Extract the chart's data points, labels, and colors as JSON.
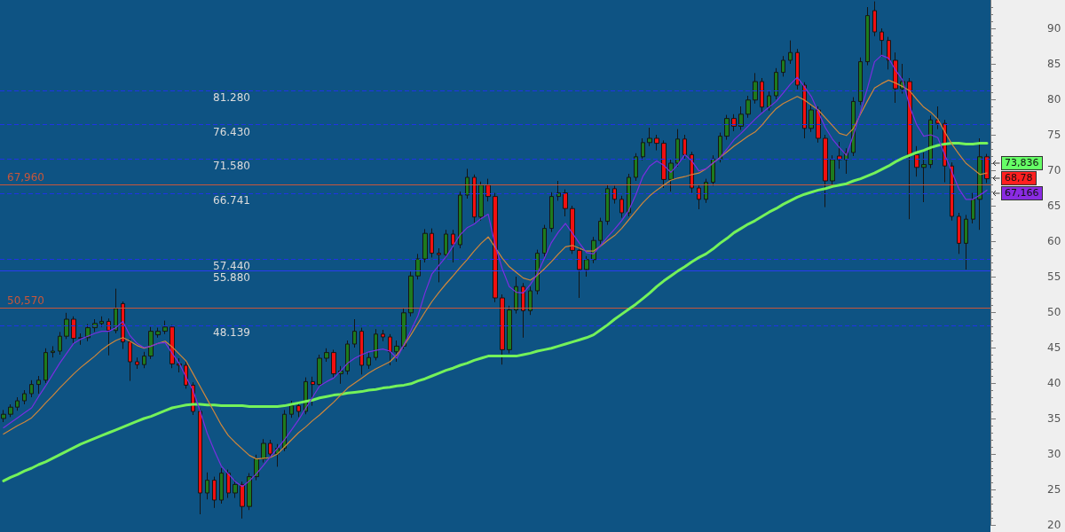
{
  "chart_data": {
    "type": "candlestick",
    "categories": [
      null,
      null,
      null,
      null,
      null,
      null,
      null,
      null,
      null,
      null,
      null,
      null,
      null,
      null,
      null,
      null,
      null,
      null,
      null,
      null,
      null,
      null,
      null,
      null,
      null,
      null,
      null,
      null,
      null,
      null,
      null,
      null,
      null,
      null,
      null,
      null,
      null,
      null,
      null,
      null,
      null,
      null,
      null,
      null,
      null,
      null,
      null,
      null,
      null,
      null,
      null,
      null,
      null,
      null,
      null,
      null,
      null,
      null,
      null,
      null,
      null,
      null,
      null,
      null,
      null,
      null,
      null,
      null,
      null,
      null,
      null,
      null,
      null,
      null,
      null,
      null,
      null,
      null,
      null,
      null,
      null,
      null,
      null,
      null,
      null,
      null,
      null,
      null,
      null,
      null,
      null,
      null,
      null,
      null,
      null,
      null,
      null,
      null,
      null,
      null,
      null,
      null,
      null,
      null,
      null,
      null,
      null,
      null,
      null,
      null,
      null,
      null,
      null,
      null,
      null,
      null,
      null,
      null,
      null,
      null,
      null,
      null,
      null,
      null,
      null,
      null,
      null,
      null,
      null,
      null,
      null,
      null,
      null,
      null,
      null,
      null,
      null,
      null,
      null,
      null,
      null
    ],
    "ohlc": [
      [
        35.0,
        36.2,
        34.5,
        35.6
      ],
      [
        35.6,
        37.0,
        35.2,
        36.6
      ],
      [
        36.6,
        38.0,
        36.1,
        37.5
      ],
      [
        37.5,
        39.0,
        37.0,
        38.5
      ],
      [
        38.5,
        40.4,
        38.0,
        39.8
      ],
      [
        39.8,
        41.0,
        38.5,
        40.4
      ],
      [
        40.4,
        44.9,
        40.0,
        44.3
      ],
      [
        44.3,
        45.2,
        43.6,
        44.5
      ],
      [
        44.5,
        47.2,
        44.0,
        46.6
      ],
      [
        46.6,
        49.9,
        46.2,
        49.0
      ],
      [
        49.0,
        49.4,
        45.6,
        46.3
      ],
      [
        46.3,
        47.0,
        45.4,
        46.4
      ],
      [
        46.4,
        48.3,
        45.9,
        47.8
      ],
      [
        47.8,
        49.0,
        47.2,
        48.4
      ],
      [
        48.4,
        49.4,
        47.9,
        48.7
      ],
      [
        48.7,
        49.1,
        43.9,
        47.4
      ],
      [
        47.4,
        53.3,
        47.0,
        50.5
      ],
      [
        51.2,
        51.5,
        44.8,
        45.8
      ],
      [
        45.8,
        46.2,
        40.3,
        43.0
      ],
      [
        43.0,
        43.6,
        42.0,
        42.6
      ],
      [
        42.6,
        44.4,
        42.1,
        43.8
      ],
      [
        43.8,
        47.9,
        43.4,
        47.3
      ],
      [
        46.8,
        47.8,
        46.4,
        47.3
      ],
      [
        47.3,
        48.8,
        46.9,
        47.9
      ],
      [
        47.9,
        48.2,
        42.1,
        42.7
      ],
      [
        42.7,
        43.5,
        41.5,
        42.5
      ],
      [
        42.5,
        43.0,
        39.2,
        39.7
      ],
      [
        39.7,
        40.1,
        35.5,
        36.0
      ],
      [
        36.0,
        36.4,
        21.5,
        24.5
      ],
      [
        24.5,
        27.4,
        23.6,
        26.3
      ],
      [
        26.3,
        26.8,
        22.4,
        23.5
      ],
      [
        23.5,
        28.0,
        23.0,
        27.3
      ],
      [
        27.3,
        27.8,
        23.8,
        24.5
      ],
      [
        24.5,
        26.4,
        23.8,
        25.7
      ],
      [
        25.7,
        26.1,
        20.9,
        22.6
      ],
      [
        22.6,
        27.3,
        22.1,
        26.8
      ],
      [
        26.8,
        29.9,
        26.3,
        29.3
      ],
      [
        29.3,
        32.1,
        28.8,
        31.5
      ],
      [
        31.5,
        32.0,
        29.4,
        30.0
      ],
      [
        30.0,
        31.4,
        28.2,
        30.8
      ],
      [
        30.8,
        36.2,
        30.4,
        35.6
      ],
      [
        35.6,
        37.5,
        35.1,
        36.8
      ],
      [
        36.8,
        37.3,
        35.2,
        36.0
      ],
      [
        36.0,
        40.8,
        35.6,
        40.2
      ],
      [
        40.2,
        40.9,
        36.8,
        39.8
      ],
      [
        39.8,
        44.0,
        39.4,
        43.5
      ],
      [
        43.5,
        44.9,
        43.0,
        44.3
      ],
      [
        44.3,
        44.7,
        40.8,
        41.3
      ],
      [
        41.3,
        42.4,
        39.9,
        41.7
      ],
      [
        41.7,
        46.0,
        41.2,
        45.5
      ],
      [
        45.5,
        49.0,
        45.0,
        47.3
      ],
      [
        47.3,
        47.8,
        41.2,
        42.5
      ],
      [
        42.5,
        44.3,
        42.0,
        43.6
      ],
      [
        43.6,
        47.6,
        43.2,
        46.9
      ],
      [
        46.9,
        47.5,
        45.9,
        46.5
      ],
      [
        46.5,
        46.9,
        42.5,
        44.4
      ],
      [
        44.4,
        46.0,
        43.0,
        45.2
      ],
      [
        45.2,
        50.5,
        44.8,
        49.9
      ],
      [
        49.9,
        55.7,
        49.4,
        55.1
      ],
      [
        55.1,
        58.2,
        54.6,
        57.5
      ],
      [
        57.5,
        61.7,
        57.0,
        61.1
      ],
      [
        61.1,
        61.8,
        57.7,
        58.3
      ],
      [
        58.3,
        59.0,
        54.2,
        58.1
      ],
      [
        58.1,
        61.6,
        57.6,
        61.0
      ],
      [
        61.0,
        61.6,
        57.0,
        59.5
      ],
      [
        59.5,
        67.0,
        59.0,
        66.5
      ],
      [
        66.5,
        70.2,
        66.0,
        69.0
      ],
      [
        69.0,
        69.4,
        62.6,
        63.4
      ],
      [
        63.4,
        68.4,
        62.9,
        67.9
      ],
      [
        67.9,
        68.8,
        65.6,
        66.3
      ],
      [
        66.3,
        66.8,
        51.4,
        52.0
      ],
      [
        52.0,
        52.5,
        42.6,
        44.7
      ],
      [
        44.7,
        50.9,
        44.2,
        50.3
      ],
      [
        50.3,
        55.0,
        49.8,
        53.6
      ],
      [
        53.6,
        54.1,
        46.4,
        50.2
      ],
      [
        50.2,
        53.6,
        49.6,
        53.0
      ],
      [
        53.0,
        58.8,
        52.5,
        58.3
      ],
      [
        58.3,
        62.3,
        57.8,
        61.8
      ],
      [
        61.8,
        66.9,
        61.3,
        66.3
      ],
      [
        66.3,
        68.5,
        65.7,
        66.8
      ],
      [
        66.8,
        67.3,
        63.5,
        64.6
      ],
      [
        64.6,
        65.0,
        58.2,
        58.7
      ],
      [
        58.7,
        59.2,
        52.0,
        56.0
      ],
      [
        56.0,
        57.9,
        55.0,
        57.4
      ],
      [
        57.4,
        60.6,
        56.9,
        60.1
      ],
      [
        60.1,
        63.3,
        59.6,
        62.8
      ],
      [
        62.8,
        67.9,
        62.3,
        67.4
      ],
      [
        67.4,
        67.8,
        65.3,
        65.9
      ],
      [
        65.9,
        66.4,
        63.3,
        64.0
      ],
      [
        64.0,
        69.5,
        63.5,
        69.0
      ],
      [
        69.0,
        72.4,
        68.5,
        71.9
      ],
      [
        71.9,
        74.5,
        71.4,
        73.9
      ],
      [
        73.9,
        76.0,
        73.4,
        74.5
      ],
      [
        74.5,
        75.0,
        72.8,
        73.8
      ],
      [
        73.8,
        74.2,
        67.5,
        68.7
      ],
      [
        68.7,
        71.5,
        67.0,
        71.0
      ],
      [
        71.0,
        75.8,
        70.5,
        74.4
      ],
      [
        74.4,
        75.0,
        71.5,
        72.2
      ],
      [
        72.2,
        72.6,
        66.8,
        67.5
      ],
      [
        67.5,
        68.0,
        64.5,
        65.9
      ],
      [
        65.9,
        68.8,
        65.4,
        68.3
      ],
      [
        68.3,
        72.1,
        67.8,
        71.6
      ],
      [
        71.6,
        75.3,
        71.1,
        74.8
      ],
      [
        74.8,
        77.8,
        74.3,
        77.3
      ],
      [
        77.3,
        77.9,
        75.5,
        76.2
      ],
      [
        76.2,
        79.0,
        75.7,
        77.9
      ],
      [
        77.9,
        80.5,
        77.4,
        79.9
      ],
      [
        79.9,
        83.7,
        79.4,
        82.5
      ],
      [
        82.5,
        83.0,
        78.2,
        78.9
      ],
      [
        78.9,
        81.1,
        78.4,
        80.5
      ],
      [
        80.5,
        84.4,
        80.0,
        83.8
      ],
      [
        83.8,
        86.1,
        83.2,
        85.5
      ],
      [
        85.5,
        88.3,
        85.0,
        86.6
      ],
      [
        86.6,
        87.1,
        81.4,
        82.0
      ],
      [
        82.0,
        82.4,
        74.5,
        75.9
      ],
      [
        75.9,
        79.2,
        75.4,
        78.5
      ],
      [
        78.5,
        79.0,
        73.9,
        74.5
      ],
      [
        74.5,
        75.0,
        64.8,
        68.5
      ],
      [
        68.5,
        72.1,
        68.0,
        71.5
      ],
      [
        72.0,
        74.0,
        70.2,
        71.5
      ],
      [
        71.5,
        73.1,
        69.5,
        72.5
      ],
      [
        72.5,
        80.3,
        72.0,
        79.7
      ],
      [
        79.7,
        85.9,
        79.2,
        85.3
      ],
      [
        85.3,
        93.0,
        84.8,
        91.8
      ],
      [
        92.5,
        93.8,
        88.9,
        89.5
      ],
      [
        89.5,
        90.0,
        86.0,
        88.3
      ],
      [
        88.3,
        88.8,
        84.2,
        85.5
      ],
      [
        85.5,
        86.6,
        79.5,
        81.5
      ],
      [
        81.5,
        85.0,
        80.8,
        82.5
      ],
      [
        82.5,
        83.0,
        63.1,
        72.2
      ],
      [
        72.2,
        73.4,
        69.1,
        70.4
      ],
      [
        70.4,
        72.5,
        65.5,
        70.8
      ],
      [
        70.8,
        77.7,
        70.3,
        77.1
      ],
      [
        77.1,
        79.0,
        75.8,
        76.6
      ],
      [
        76.6,
        77.1,
        68.3,
        70.6
      ],
      [
        70.6,
        71.1,
        62.9,
        63.5
      ],
      [
        63.5,
        64.0,
        58.2,
        59.7
      ],
      [
        59.7,
        63.7,
        56.0,
        63.1
      ],
      [
        63.1,
        66.8,
        62.5,
        65.9
      ],
      [
        65.9,
        74.5,
        61.6,
        71.9
      ],
      [
        71.9,
        72.3,
        68.2,
        68.8
      ]
    ],
    "colors": [
      "#1e7b1e",
      "#1e7b1e",
      "#1e7b1e",
      "#1e7b1e",
      "#1e7b1e",
      "#1e7b1e",
      "#1e7b1e",
      "#1e7b1e",
      "#1e7b1e",
      "#1e7b1e",
      "#f01010",
      "#1e7b1e",
      "#1e7b1e",
      "#1e7b1e",
      "#1e7b1e",
      "#f01010",
      "#1e7b1e",
      "#f01010",
      "#f01010",
      "#f01010",
      "#1e7b1e",
      "#1e7b1e",
      "#1e7b1e",
      "#1e7b1e",
      "#f01010",
      "#f01010",
      "#f01010",
      "#f01010",
      "#f01010",
      "#1e7b1e",
      "#f01010",
      "#1e7b1e",
      "#f01010",
      "#1e7b1e",
      "#f01010",
      "#1e7b1e",
      "#1e7b1e",
      "#1e7b1e",
      "#f01010",
      "#1e7b1e",
      "#1e7b1e",
      "#1e7b1e",
      "#f01010",
      "#1e7b1e",
      "#f01010",
      "#1e7b1e",
      "#1e7b1e",
      "#f01010",
      "#1e7b1e",
      "#1e7b1e",
      "#1e7b1e",
      "#f01010",
      "#1e7b1e",
      "#1e7b1e",
      "#f01010",
      "#f01010",
      "#1e7b1e",
      "#1e7b1e",
      "#1e7b1e",
      "#1e7b1e",
      "#1e7b1e",
      "#f01010",
      "#f01010",
      "#1e7b1e",
      "#f01010",
      "#1e7b1e",
      "#1e7b1e",
      "#f01010",
      "#1e7b1e",
      "#f01010",
      "#f01010",
      "#f01010",
      "#1e7b1e",
      "#1e7b1e",
      "#f01010",
      "#1e7b1e",
      "#1e7b1e",
      "#1e7b1e",
      "#1e7b1e",
      "#1e7b1e",
      "#f01010",
      "#f01010",
      "#f01010",
      "#1e7b1e",
      "#1e7b1e",
      "#1e7b1e",
      "#1e7b1e",
      "#f01010",
      "#f01010",
      "#1e7b1e",
      "#1e7b1e",
      "#1e7b1e",
      "#1e7b1e",
      "#f01010",
      "#f01010",
      "#1e7b1e",
      "#1e7b1e",
      "#f01010",
      "#f01010",
      "#f01010",
      "#1e7b1e",
      "#1e7b1e",
      "#1e7b1e",
      "#1e7b1e",
      "#f01010",
      "#1e7b1e",
      "#1e7b1e",
      "#1e7b1e",
      "#f01010",
      "#1e7b1e",
      "#1e7b1e",
      "#1e7b1e",
      "#1e7b1e",
      "#f01010",
      "#f01010",
      "#1e7b1e",
      "#f01010",
      "#f01010",
      "#1e7b1e",
      "#f01010",
      "#1e7b1e",
      "#1e7b1e",
      "#1e7b1e",
      "#1e7b1e",
      "#f01010",
      "#f01010",
      "#f01010",
      "#f01010",
      "#1e7b1e",
      "#f01010",
      "#f01010",
      "#1e7b1e",
      "#1e7b1e",
      "#f01010",
      "#f01010",
      "#f01010",
      "#f01010",
      "#1e7b1e",
      "#1e7b1e",
      "#1e7b1e",
      "#f01010"
    ],
    "series": [
      {
        "type": "line",
        "color": "#74f25a",
        "values": [
          26.2,
          26.7,
          27.1,
          27.6,
          28.0,
          28.5,
          28.9,
          29.4,
          29.9,
          30.4,
          30.9,
          31.4,
          31.8,
          32.2,
          32.6,
          33.0,
          33.4,
          33.8,
          34.2,
          34.6,
          35.0,
          35.3,
          35.7,
          36.1,
          36.5,
          36.7,
          36.9,
          37.0,
          37.0,
          36.9,
          36.9,
          36.8,
          36.8,
          36.8,
          36.8,
          36.7,
          36.7,
          36.7,
          36.7,
          36.7,
          36.8,
          37.0,
          37.2,
          37.4,
          37.6,
          37.9,
          38.1,
          38.3,
          38.4,
          38.6,
          38.7,
          38.8,
          39.0,
          39.1,
          39.3,
          39.4,
          39.6,
          39.7,
          39.9,
          40.3,
          40.6,
          41.0,
          41.4,
          41.8,
          42.1,
          42.5,
          42.8,
          43.2,
          43.5,
          43.8,
          43.8,
          43.8,
          43.8,
          43.8,
          44.0,
          44.2,
          44.5,
          44.7,
          44.9,
          45.2,
          45.5,
          45.8,
          46.1,
          46.4,
          46.8,
          47.5,
          48.2,
          49.0,
          49.7,
          50.4,
          51.1,
          51.9,
          52.7,
          53.6,
          54.4,
          55.1,
          55.8,
          56.4,
          57.1,
          57.7,
          58.2,
          58.9,
          59.7,
          60.4,
          61.2,
          61.8,
          62.4,
          62.9,
          63.5,
          64.1,
          64.6,
          65.2,
          65.7,
          66.2,
          66.6,
          66.9,
          67.2,
          67.4,
          67.7,
          67.9,
          68.1,
          68.5,
          68.8,
          69.2,
          69.6,
          70.1,
          70.6,
          71.2,
          71.7,
          72.1,
          72.5,
          72.8,
          73.2,
          73.5,
          73.7,
          73.8,
          73.8,
          73.7,
          73.7,
          73.8,
          73.8
        ]
      },
      {
        "type": "line",
        "color": "#d0873a",
        "values": [
          32.8,
          33.4,
          34.0,
          34.5,
          35.1,
          36.1,
          37.2,
          38.2,
          39.3,
          40.3,
          41.3,
          42.2,
          43.0,
          43.8,
          44.7,
          45.4,
          46.0,
          46.4,
          45.9,
          45.3,
          44.9,
          45.2,
          45.6,
          45.9,
          45.1,
          44.1,
          43.1,
          41.3,
          39.5,
          37.7,
          35.9,
          34.1,
          32.6,
          31.6,
          30.7,
          29.8,
          29.3,
          29.4,
          29.5,
          30.0,
          31.0,
          32.0,
          33.0,
          33.8,
          34.7,
          35.5,
          36.4,
          37.3,
          38.3,
          39.3,
          40.0,
          40.7,
          41.4,
          42.0,
          42.5,
          43.0,
          44.0,
          45.3,
          46.8,
          48.4,
          50.0,
          51.5,
          52.8,
          54.0,
          55.1,
          56.3,
          57.4,
          58.6,
          59.7,
          60.6,
          59.1,
          57.6,
          56.4,
          55.6,
          54.8,
          54.5,
          55.2,
          56.1,
          57.1,
          58.2,
          59.2,
          59.4,
          59.0,
          58.6,
          58.6,
          59.3,
          60.1,
          60.8,
          61.8,
          63.0,
          64.2,
          65.4,
          66.4,
          67.2,
          67.9,
          68.6,
          68.9,
          69.1,
          69.4,
          69.6,
          70.2,
          71.0,
          71.8,
          72.6,
          73.4,
          74.1,
          74.8,
          75.4,
          76.4,
          77.6,
          78.7,
          79.4,
          79.9,
          80.4,
          79.9,
          79.2,
          78.5,
          77.4,
          76.3,
          75.2,
          74.9,
          75.9,
          77.9,
          79.8,
          81.6,
          82.2,
          82.7,
          82.3,
          81.8,
          81.2,
          80.0,
          78.9,
          78.2,
          77.2,
          75.4,
          73.7,
          72.3,
          71.0,
          70.2,
          69.4,
          69.6
        ]
      },
      {
        "type": "line",
        "color": "#7a2ee0",
        "values": [
          33.7,
          34.4,
          35.1,
          35.8,
          36.5,
          38.1,
          39.6,
          41.2,
          42.8,
          44.2,
          45.6,
          46.2,
          46.6,
          47.0,
          47.3,
          47.3,
          47.8,
          48.7,
          46.7,
          45.6,
          45.0,
          45.2,
          45.6,
          45.7,
          44.2,
          42.8,
          40.8,
          38.9,
          36.0,
          32.9,
          30.5,
          28.3,
          27.2,
          26.1,
          25.4,
          26.2,
          27.2,
          28.4,
          29.6,
          30.8,
          32.0,
          33.4,
          34.8,
          36.4,
          38.0,
          39.6,
          40.2,
          40.7,
          41.7,
          42.8,
          43.5,
          44.0,
          44.4,
          44.6,
          44.8,
          44.5,
          43.5,
          45.4,
          47.4,
          49.5,
          52.7,
          55.4,
          56.6,
          57.8,
          59.3,
          60.9,
          61.9,
          62.4,
          63.2,
          63.8,
          59.4,
          56.1,
          53.6,
          52.8,
          52.7,
          53.9,
          55.4,
          57.6,
          59.8,
          61.3,
          62.5,
          61.1,
          59.7,
          58.4,
          58.2,
          59.4,
          60.6,
          61.7,
          62.9,
          64.3,
          66.5,
          69.1,
          70.6,
          71.3,
          70.7,
          69.7,
          70.8,
          72.2,
          71.3,
          69.9,
          70.2,
          71.0,
          71.8,
          73.0,
          74.3,
          75.2,
          76.2,
          77.2,
          78.1,
          78.9,
          79.7,
          80.9,
          82.1,
          83.1,
          81.8,
          80.4,
          78.2,
          76.0,
          74.4,
          73.2,
          72.1,
          75.0,
          78.2,
          81.6,
          85.3,
          86.2,
          85.8,
          84.1,
          82.7,
          79.0,
          76.4,
          74.8,
          75.0,
          74.6,
          72.2,
          69.8,
          67.4,
          65.9,
          65.9,
          66.5,
          67.2
        ]
      }
    ],
    "ylim": [
      20,
      94
    ],
    "yticks": [
      20,
      {
        "value": 21,
        "label": null
      },
      {
        "value": 22,
        "label": null
      },
      {
        "value": 23,
        "label": null
      },
      {
        "value": 24,
        "label": null
      },
      25,
      {
        "value": 26,
        "label": null
      },
      {
        "value": 27,
        "label": null
      },
      {
        "value": 28,
        "label": null
      },
      {
        "value": 29,
        "label": null
      },
      30,
      {
        "value": 31,
        "label": null
      },
      {
        "value": 32,
        "label": null
      },
      {
        "value": 33,
        "label": null
      },
      {
        "value": 34,
        "label": null
      },
      35,
      {
        "value": 36,
        "label": null
      },
      {
        "value": 37,
        "label": null
      },
      {
        "value": 38,
        "label": null
      },
      {
        "value": 39,
        "label": null
      },
      40,
      {
        "value": 41,
        "label": null
      },
      {
        "value": 42,
        "label": null
      },
      {
        "value": 43,
        "label": null
      },
      {
        "value": 44,
        "label": null
      },
      45,
      {
        "value": 46,
        "label": null
      },
      {
        "value": 47,
        "label": null
      },
      {
        "value": 48,
        "label": null
      },
      {
        "value": 49,
        "label": null
      },
      50,
      {
        "value": 51,
        "label": null
      },
      {
        "value": 52,
        "label": null
      },
      {
        "value": 53,
        "label": null
      },
      {
        "value": 54,
        "label": null
      },
      55,
      {
        "value": 56,
        "label": null
      },
      {
        "value": 57,
        "label": null
      },
      {
        "value": 58,
        "label": null
      },
      {
        "value": 59,
        "label": null
      },
      60,
      {
        "value": 61,
        "label": null
      },
      {
        "value": 62,
        "label": null
      },
      {
        "value": 63,
        "label": null
      },
      {
        "value": 64,
        "label": null
      },
      65,
      {
        "value": 66,
        "label": null
      },
      {
        "value": 67,
        "label": null
      },
      {
        "value": 68,
        "label": null
      },
      {
        "value": 69,
        "label": null
      },
      70,
      {
        "value": 71,
        "label": null
      },
      {
        "value": 72,
        "label": null
      },
      {
        "value": 73,
        "label": null
      },
      {
        "value": 74,
        "label": null
      },
      75,
      {
        "value": 76,
        "label": null
      },
      {
        "value": 77,
        "label": null
      },
      {
        "value": 78,
        "label": null
      },
      {
        "value": 79,
        "label": null
      },
      80,
      {
        "value": 81,
        "label": null
      },
      {
        "value": 82,
        "label": null
      },
      {
        "value": 83,
        "label": null
      },
      {
        "value": 84,
        "label": null
      },
      85,
      {
        "value": 86,
        "label": null
      },
      {
        "value": 87,
        "label": null
      },
      {
        "value": 88,
        "label": null
      },
      {
        "value": 89,
        "label": null
      },
      90,
      {
        "value": 91,
        "label": null
      },
      {
        "value": 92,
        "label": null
      },
      {
        "value": 93,
        "label": null
      }
    ],
    "tick_labels": "y",
    "grid": false,
    "marker": "none",
    "ref_lines": [
      {
        "axis": "y",
        "value": 67.96,
        "label": "67,960",
        "color": "#c8563a",
        "line_style": "solid"
      },
      {
        "axis": "y",
        "value": 50.57,
        "label": "50,570",
        "color": "#c8563a",
        "line_style": "solid"
      },
      {
        "axis": "y",
        "value": 66.741,
        "label": "66.741",
        "color": "#1f33e6",
        "line_style": "dashed"
      },
      {
        "axis": "y",
        "value": 57.44,
        "label": "57.440",
        "color": "#1f33e6",
        "line_style": "dashed"
      },
      {
        "axis": "y",
        "value": 48.139,
        "label": "48.139",
        "color": "#1f33e6",
        "line_style": "dashed"
      },
      {
        "axis": "y",
        "value": 81.28,
        "label": "81.280",
        "color": "#1f33e6",
        "line_style": "dashed"
      },
      {
        "axis": "y",
        "value": 76.43,
        "label": "76.430",
        "color": "#1f33e6",
        "line_style": "dashed"
      },
      {
        "axis": "y",
        "value": 71.58,
        "label": "71.580",
        "color": "#1f33e6",
        "line_style": "dashed"
      },
      {
        "axis": "y",
        "value": 55.88,
        "label": "55.880",
        "color": "#2a3cf0",
        "line_style": "solid"
      }
    ],
    "annotations": [
      "73,836",
      "68,78",
      "67,166"
    ]
  }
}
